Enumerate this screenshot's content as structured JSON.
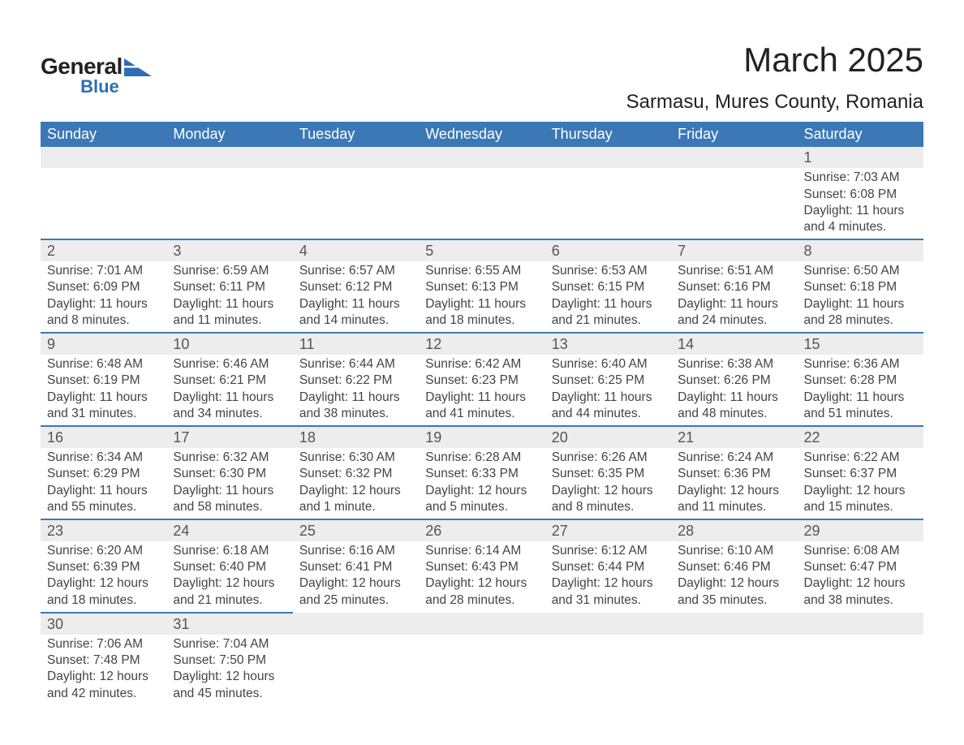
{
  "logo": {
    "text1": "General",
    "text2": "Blue",
    "shape_color": "#2d6fb5",
    "text_color": "#222222"
  },
  "title": "March 2025",
  "location": "Sarmasu, Mures County, Romania",
  "header_bg": "#3b78b5",
  "header_fg": "#ffffff",
  "daynum_bg": "#ededed",
  "border_color": "#3b78b5",
  "text_color": "#444444",
  "font_family": "Arial",
  "title_fontsize": 42,
  "location_fontsize": 24,
  "header_fontsize": 18,
  "daynum_fontsize": 18,
  "body_fontsize": 15.5,
  "weekdays": [
    "Sunday",
    "Monday",
    "Tuesday",
    "Wednesday",
    "Thursday",
    "Friday",
    "Saturday"
  ],
  "leading_blanks": 6,
  "days": [
    {
      "n": 1,
      "sunrise": "Sunrise: 7:03 AM",
      "sunset": "Sunset: 6:08 PM",
      "d1": "Daylight: 11 hours",
      "d2": "and 4 minutes."
    },
    {
      "n": 2,
      "sunrise": "Sunrise: 7:01 AM",
      "sunset": "Sunset: 6:09 PM",
      "d1": "Daylight: 11 hours",
      "d2": "and 8 minutes."
    },
    {
      "n": 3,
      "sunrise": "Sunrise: 6:59 AM",
      "sunset": "Sunset: 6:11 PM",
      "d1": "Daylight: 11 hours",
      "d2": "and 11 minutes."
    },
    {
      "n": 4,
      "sunrise": "Sunrise: 6:57 AM",
      "sunset": "Sunset: 6:12 PM",
      "d1": "Daylight: 11 hours",
      "d2": "and 14 minutes."
    },
    {
      "n": 5,
      "sunrise": "Sunrise: 6:55 AM",
      "sunset": "Sunset: 6:13 PM",
      "d1": "Daylight: 11 hours",
      "d2": "and 18 minutes."
    },
    {
      "n": 6,
      "sunrise": "Sunrise: 6:53 AM",
      "sunset": "Sunset: 6:15 PM",
      "d1": "Daylight: 11 hours",
      "d2": "and 21 minutes."
    },
    {
      "n": 7,
      "sunrise": "Sunrise: 6:51 AM",
      "sunset": "Sunset: 6:16 PM",
      "d1": "Daylight: 11 hours",
      "d2": "and 24 minutes."
    },
    {
      "n": 8,
      "sunrise": "Sunrise: 6:50 AM",
      "sunset": "Sunset: 6:18 PM",
      "d1": "Daylight: 11 hours",
      "d2": "and 28 minutes."
    },
    {
      "n": 9,
      "sunrise": "Sunrise: 6:48 AM",
      "sunset": "Sunset: 6:19 PM",
      "d1": "Daylight: 11 hours",
      "d2": "and 31 minutes."
    },
    {
      "n": 10,
      "sunrise": "Sunrise: 6:46 AM",
      "sunset": "Sunset: 6:21 PM",
      "d1": "Daylight: 11 hours",
      "d2": "and 34 minutes."
    },
    {
      "n": 11,
      "sunrise": "Sunrise: 6:44 AM",
      "sunset": "Sunset: 6:22 PM",
      "d1": "Daylight: 11 hours",
      "d2": "and 38 minutes."
    },
    {
      "n": 12,
      "sunrise": "Sunrise: 6:42 AM",
      "sunset": "Sunset: 6:23 PM",
      "d1": "Daylight: 11 hours",
      "d2": "and 41 minutes."
    },
    {
      "n": 13,
      "sunrise": "Sunrise: 6:40 AM",
      "sunset": "Sunset: 6:25 PM",
      "d1": "Daylight: 11 hours",
      "d2": "and 44 minutes."
    },
    {
      "n": 14,
      "sunrise": "Sunrise: 6:38 AM",
      "sunset": "Sunset: 6:26 PM",
      "d1": "Daylight: 11 hours",
      "d2": "and 48 minutes."
    },
    {
      "n": 15,
      "sunrise": "Sunrise: 6:36 AM",
      "sunset": "Sunset: 6:28 PM",
      "d1": "Daylight: 11 hours",
      "d2": "and 51 minutes."
    },
    {
      "n": 16,
      "sunrise": "Sunrise: 6:34 AM",
      "sunset": "Sunset: 6:29 PM",
      "d1": "Daylight: 11 hours",
      "d2": "and 55 minutes."
    },
    {
      "n": 17,
      "sunrise": "Sunrise: 6:32 AM",
      "sunset": "Sunset: 6:30 PM",
      "d1": "Daylight: 11 hours",
      "d2": "and 58 minutes."
    },
    {
      "n": 18,
      "sunrise": "Sunrise: 6:30 AM",
      "sunset": "Sunset: 6:32 PM",
      "d1": "Daylight: 12 hours",
      "d2": "and 1 minute."
    },
    {
      "n": 19,
      "sunrise": "Sunrise: 6:28 AM",
      "sunset": "Sunset: 6:33 PM",
      "d1": "Daylight: 12 hours",
      "d2": "and 5 minutes."
    },
    {
      "n": 20,
      "sunrise": "Sunrise: 6:26 AM",
      "sunset": "Sunset: 6:35 PM",
      "d1": "Daylight: 12 hours",
      "d2": "and 8 minutes."
    },
    {
      "n": 21,
      "sunrise": "Sunrise: 6:24 AM",
      "sunset": "Sunset: 6:36 PM",
      "d1": "Daylight: 12 hours",
      "d2": "and 11 minutes."
    },
    {
      "n": 22,
      "sunrise": "Sunrise: 6:22 AM",
      "sunset": "Sunset: 6:37 PM",
      "d1": "Daylight: 12 hours",
      "d2": "and 15 minutes."
    },
    {
      "n": 23,
      "sunrise": "Sunrise: 6:20 AM",
      "sunset": "Sunset: 6:39 PM",
      "d1": "Daylight: 12 hours",
      "d2": "and 18 minutes."
    },
    {
      "n": 24,
      "sunrise": "Sunrise: 6:18 AM",
      "sunset": "Sunset: 6:40 PM",
      "d1": "Daylight: 12 hours",
      "d2": "and 21 minutes."
    },
    {
      "n": 25,
      "sunrise": "Sunrise: 6:16 AM",
      "sunset": "Sunset: 6:41 PM",
      "d1": "Daylight: 12 hours",
      "d2": "and 25 minutes."
    },
    {
      "n": 26,
      "sunrise": "Sunrise: 6:14 AM",
      "sunset": "Sunset: 6:43 PM",
      "d1": "Daylight: 12 hours",
      "d2": "and 28 minutes."
    },
    {
      "n": 27,
      "sunrise": "Sunrise: 6:12 AM",
      "sunset": "Sunset: 6:44 PM",
      "d1": "Daylight: 12 hours",
      "d2": "and 31 minutes."
    },
    {
      "n": 28,
      "sunrise": "Sunrise: 6:10 AM",
      "sunset": "Sunset: 6:46 PM",
      "d1": "Daylight: 12 hours",
      "d2": "and 35 minutes."
    },
    {
      "n": 29,
      "sunrise": "Sunrise: 6:08 AM",
      "sunset": "Sunset: 6:47 PM",
      "d1": "Daylight: 12 hours",
      "d2": "and 38 minutes."
    },
    {
      "n": 30,
      "sunrise": "Sunrise: 7:06 AM",
      "sunset": "Sunset: 7:48 PM",
      "d1": "Daylight: 12 hours",
      "d2": "and 42 minutes."
    },
    {
      "n": 31,
      "sunrise": "Sunrise: 7:04 AM",
      "sunset": "Sunset: 7:50 PM",
      "d1": "Daylight: 12 hours",
      "d2": "and 45 minutes."
    }
  ]
}
